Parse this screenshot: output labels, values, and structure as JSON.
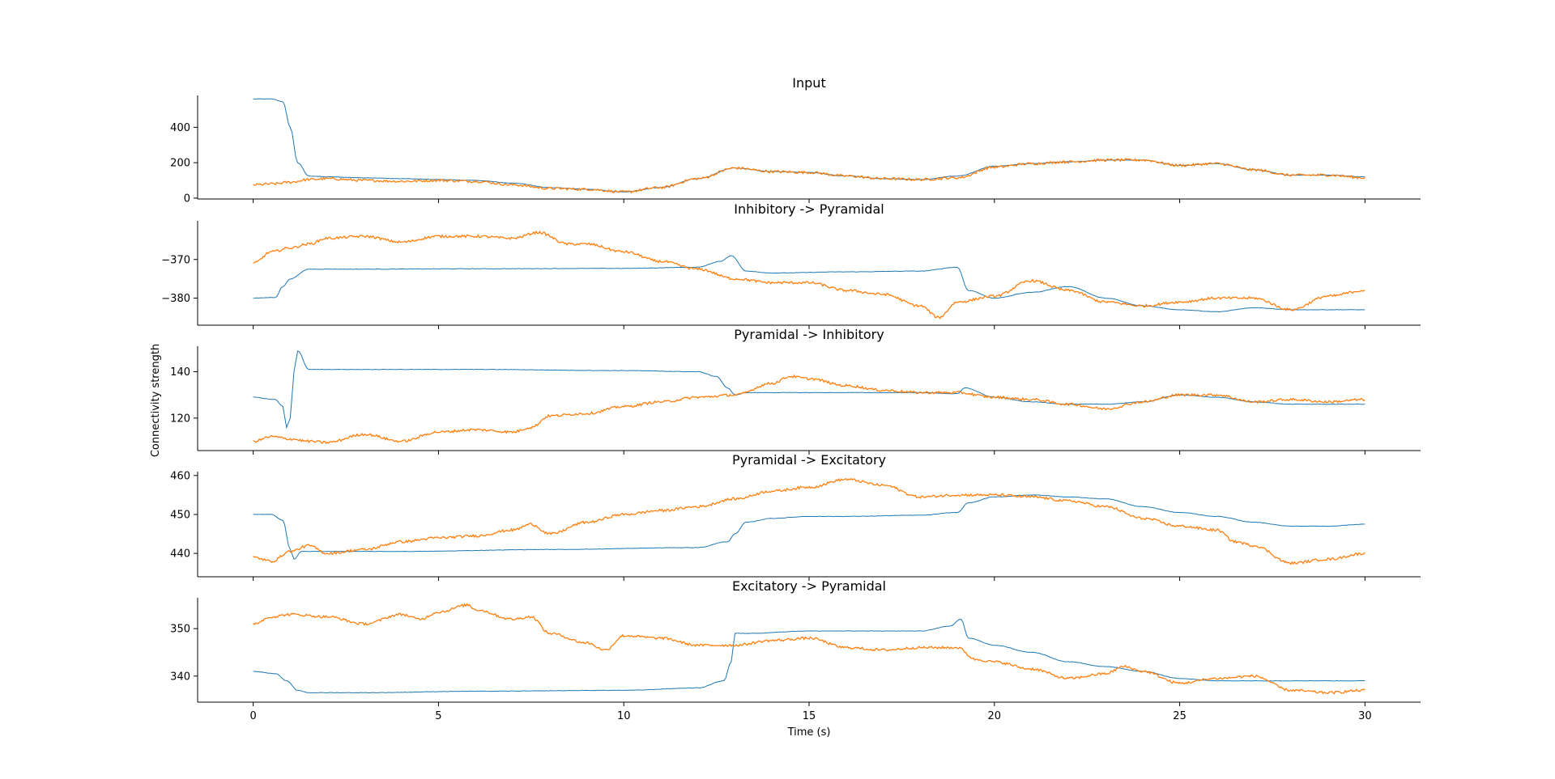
{
  "figure": {
    "ylabel": "Connectivity strength",
    "xlabel": "Time (s)",
    "xlim": [
      -1.5,
      31.5
    ],
    "xticks": [
      0,
      5,
      10,
      15,
      20,
      25,
      30
    ],
    "colors": {
      "series_a": "#1f77b4",
      "series_b": "#ff7f0e"
    }
  },
  "chart_data": [
    {
      "type": "line",
      "title": "Input",
      "ylim": [
        -5,
        580
      ],
      "yticks": [
        0,
        200,
        400
      ],
      "series": [
        {
          "x": [
            0,
            0.5,
            0.8,
            1.0,
            1.2,
            1.5,
            2,
            3,
            4,
            5,
            6,
            7,
            8,
            9,
            10,
            11,
            12,
            13,
            14,
            15,
            16,
            17,
            18,
            19,
            20,
            21,
            22,
            23,
            24,
            25,
            26,
            27,
            28,
            29,
            30
          ],
          "y": [
            560,
            560,
            545,
            400,
            200,
            125,
            120,
            115,
            110,
            105,
            100,
            85,
            60,
            50,
            35,
            60,
            110,
            170,
            150,
            145,
            125,
            110,
            105,
            125,
            180,
            195,
            205,
            215,
            215,
            185,
            195,
            160,
            130,
            130,
            120
          ]
        },
        {
          "x": [
            0,
            0.5,
            1.0,
            1.5,
            2,
            3,
            4,
            5,
            6,
            7,
            8,
            9,
            10,
            11,
            12,
            13,
            14,
            15,
            16,
            17,
            18,
            19,
            20,
            21,
            22,
            23,
            24,
            25,
            26,
            27,
            28,
            29,
            30
          ],
          "y": [
            75,
            80,
            90,
            105,
            110,
            100,
            95,
            100,
            95,
            75,
            55,
            50,
            35,
            60,
            110,
            170,
            150,
            145,
            125,
            110,
            105,
            115,
            175,
            195,
            205,
            215,
            215,
            185,
            195,
            160,
            130,
            130,
            115
          ]
        }
      ]
    },
    {
      "type": "line",
      "title": "Inhibitory -> Pyramidal",
      "ylim": [
        -387,
        -360
      ],
      "yticks": [
        -380,
        -370
      ],
      "series": [
        {
          "x": [
            0,
            0.6,
            0.8,
            1.0,
            1.5,
            3,
            6,
            10,
            12,
            12.6,
            12.9,
            13.3,
            14,
            16,
            18,
            19.0,
            19.3,
            20,
            21,
            22,
            23,
            24,
            25,
            26,
            27,
            28,
            29,
            30
          ],
          "y": [
            -380,
            -379.8,
            -377,
            -375,
            -372.5,
            -372.5,
            -372.4,
            -372.3,
            -372,
            -370.5,
            -369,
            -373,
            -373.5,
            -373.2,
            -373,
            -372,
            -378,
            -380,
            -378.5,
            -377,
            -380,
            -382,
            -383,
            -383.5,
            -382.5,
            -383,
            -383,
            -383
          ]
        },
        {
          "x": [
            0,
            0.5,
            1,
            1.5,
            2,
            3,
            4,
            5,
            6,
            7,
            7.7,
            8.5,
            9,
            10,
            11,
            12,
            13,
            14,
            15,
            16,
            17,
            18,
            18.5,
            19,
            20,
            21,
            22,
            23,
            24,
            25,
            26,
            27,
            28,
            29,
            30
          ],
          "y": [
            -371,
            -368,
            -367,
            -366,
            -364.5,
            -364,
            -365.5,
            -364,
            -364,
            -364.5,
            -363,
            -366,
            -366,
            -368,
            -370.5,
            -372.5,
            -375,
            -376,
            -376,
            -378,
            -379,
            -382,
            -385,
            -381,
            -379.5,
            -375.5,
            -378,
            -381,
            -382,
            -381,
            -380,
            -380,
            -383,
            -379.5,
            -378
          ]
        }
      ]
    },
    {
      "type": "line",
      "title": "Pyramidal -> Inhibitory",
      "ylim": [
        106,
        151
      ],
      "yticks": [
        120,
        140
      ],
      "series": [
        {
          "x": [
            0,
            0.6,
            0.8,
            0.9,
            1.0,
            1.1,
            1.2,
            1.5,
            3,
            6,
            10,
            12,
            12.5,
            12.8,
            13.0,
            13.3,
            14,
            16,
            18,
            19.0,
            19.2,
            20,
            21,
            22,
            23,
            24,
            25,
            26,
            27,
            28,
            29,
            30
          ],
          "y": [
            129,
            128,
            125,
            116,
            120,
            140,
            149,
            141,
            141,
            141,
            140.5,
            140,
            138,
            133,
            130,
            131,
            131,
            131,
            131,
            130.5,
            133,
            129,
            127,
            126,
            126,
            127,
            130,
            129,
            127,
            126,
            126,
            126
          ]
        },
        {
          "x": [
            0,
            0.5,
            1,
            1.5,
            2,
            3,
            4,
            5,
            6,
            7,
            7.5,
            8,
            9,
            10,
            11,
            12,
            13,
            14,
            14.5,
            15,
            16,
            17,
            18,
            19,
            20,
            21,
            22,
            23,
            24,
            25,
            26,
            27,
            28,
            29,
            30
          ],
          "y": [
            110,
            112,
            111,
            110,
            109.5,
            113,
            110,
            114,
            115,
            114,
            116,
            121,
            122,
            125,
            127,
            129,
            130,
            135,
            138,
            137,
            134,
            132,
            131,
            131,
            129,
            128,
            126,
            124,
            127,
            130,
            130,
            127,
            128,
            127,
            128
          ]
        }
      ]
    },
    {
      "type": "line",
      "title": "Pyramidal -> Excitatory",
      "ylim": [
        434,
        461
      ],
      "yticks": [
        440,
        450,
        460
      ],
      "series": [
        {
          "x": [
            0,
            0.5,
            0.8,
            1.0,
            1.1,
            1.3,
            2,
            4,
            8,
            12,
            12.8,
            13.0,
            13.3,
            14,
            15,
            16,
            18,
            19,
            19.3,
            20,
            21,
            22,
            23,
            24,
            25,
            26,
            27,
            28,
            29,
            30
          ],
          "y": [
            450,
            450,
            448.5,
            441,
            438.5,
            440.5,
            440.5,
            440.5,
            441,
            441.5,
            443,
            445,
            448,
            449,
            449.5,
            449.5,
            449.8,
            450.5,
            453,
            454.5,
            455,
            454.5,
            454,
            452,
            450.5,
            449.5,
            448,
            447,
            447,
            447.5
          ]
        },
        {
          "x": [
            0,
            0.5,
            1,
            1.5,
            2,
            3,
            4,
            5,
            6,
            7,
            7.5,
            8,
            9,
            10,
            11,
            12,
            13,
            14,
            15,
            16,
            17,
            18,
            19,
            20,
            21,
            22,
            23,
            24,
            25,
            26,
            26.5,
            27,
            28,
            29,
            30
          ],
          "y": [
            439,
            438,
            440.5,
            442,
            440,
            441,
            443,
            444,
            444.5,
            446,
            447.5,
            445,
            448,
            450,
            451,
            452,
            454,
            456,
            457,
            459,
            457.5,
            454.5,
            455,
            455,
            454.5,
            453.5,
            452,
            449,
            447,
            446,
            443,
            442,
            437.5,
            438.5,
            440
          ]
        }
      ]
    },
    {
      "type": "line",
      "title": "Excitatory -> Pyramidal",
      "ylim": [
        334.5,
        356.5
      ],
      "yticks": [
        340,
        350
      ],
      "series": [
        {
          "x": [
            0,
            0.6,
            0.9,
            1.2,
            1.5,
            3,
            6,
            10,
            12,
            12.7,
            12.9,
            13.0,
            13.3,
            15,
            17,
            18,
            18.8,
            19.1,
            19.3,
            20,
            21,
            22,
            23,
            24,
            25,
            26,
            27,
            28,
            29,
            30
          ],
          "y": [
            341,
            340.5,
            339,
            337,
            336.5,
            336.5,
            336.8,
            337,
            337.5,
            339,
            343,
            349,
            349,
            349.5,
            349.5,
            349.5,
            350.5,
            352,
            348,
            346.5,
            345,
            343,
            342,
            341,
            339.5,
            339,
            339,
            339,
            339,
            339
          ]
        },
        {
          "x": [
            0,
            0.5,
            1,
            2,
            3,
            4,
            4.5,
            5,
            5.8,
            6,
            7,
            7.5,
            8,
            9,
            9.5,
            10,
            11,
            12,
            13,
            14,
            15,
            16,
            17,
            18,
            19,
            19.5,
            20,
            21,
            22,
            23,
            23.5,
            24,
            25,
            26,
            27,
            28,
            29,
            30
          ],
          "y": [
            351,
            352.5,
            353,
            352.5,
            351,
            353,
            352,
            353.5,
            355,
            354,
            352,
            352.5,
            349,
            347,
            345.5,
            348.5,
            348,
            346.5,
            346.5,
            347.5,
            348,
            346,
            345.5,
            346,
            346,
            343.5,
            343,
            341.5,
            339.5,
            340.5,
            342,
            341,
            338.5,
            339.5,
            340,
            337,
            336.5,
            337
          ]
        }
      ]
    }
  ]
}
